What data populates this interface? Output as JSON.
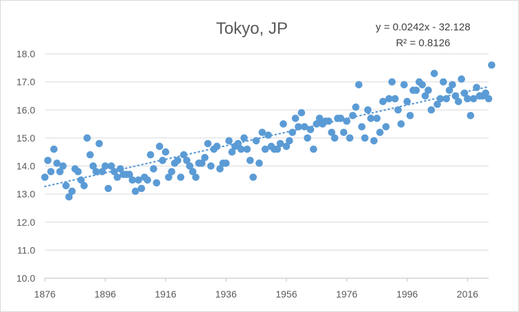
{
  "chart_data": {
    "type": "scatter",
    "title": "Tokyo, JP",
    "trendline": {
      "equation": "y = 0.0242x - 32.128",
      "r_squared": "R² = 0.8126",
      "slope": 0.0242,
      "intercept": -32.128,
      "style": "dotted"
    },
    "xlim": [
      1876,
      2023
    ],
    "ylim": [
      10.0,
      18.0
    ],
    "x_ticks": [
      1876,
      1896,
      1916,
      1936,
      1956,
      1976,
      1996,
      2016
    ],
    "y_ticks": [
      "10.0",
      "11.0",
      "12.0",
      "13.0",
      "14.0",
      "15.0",
      "16.0",
      "17.0",
      "18.0"
    ],
    "grid": "horizontal",
    "legend": "none",
    "colors": {
      "marker": "#5b9bd5",
      "trend": "#5b9bd5",
      "grid": "#d9d9d9",
      "text": "#595959"
    },
    "points": [
      [
        1876,
        13.6
      ],
      [
        1877,
        14.2
      ],
      [
        1878,
        13.8
      ],
      [
        1879,
        14.6
      ],
      [
        1880,
        14.1
      ],
      [
        1881,
        13.8
      ],
      [
        1882,
        14.0
      ],
      [
        1883,
        13.3
      ],
      [
        1884,
        12.9
      ],
      [
        1885,
        13.1
      ],
      [
        1886,
        13.9
      ],
      [
        1887,
        13.8
      ],
      [
        1888,
        13.5
      ],
      [
        1889,
        13.3
      ],
      [
        1890,
        15.0
      ],
      [
        1891,
        14.4
      ],
      [
        1892,
        14.0
      ],
      [
        1893,
        13.8
      ],
      [
        1894,
        14.8
      ],
      [
        1895,
        13.8
      ],
      [
        1896,
        14.0
      ],
      [
        1897,
        13.2
      ],
      [
        1898,
        14.0
      ],
      [
        1899,
        13.8
      ],
      [
        1900,
        13.6
      ],
      [
        1901,
        13.9
      ],
      [
        1902,
        13.7
      ],
      [
        1903,
        13.7
      ],
      [
        1904,
        13.7
      ],
      [
        1905,
        13.5
      ],
      [
        1906,
        13.1
      ],
      [
        1907,
        13.5
      ],
      [
        1908,
        13.2
      ],
      [
        1909,
        13.6
      ],
      [
        1910,
        13.5
      ],
      [
        1911,
        14.4
      ],
      [
        1912,
        13.9
      ],
      [
        1913,
        13.4
      ],
      [
        1914,
        14.7
      ],
      [
        1915,
        14.2
      ],
      [
        1916,
        14.5
      ],
      [
        1917,
        13.6
      ],
      [
        1918,
        13.8
      ],
      [
        1919,
        14.1
      ],
      [
        1920,
        14.2
      ],
      [
        1921,
        13.6
      ],
      [
        1922,
        14.4
      ],
      [
        1923,
        14.2
      ],
      [
        1924,
        14.0
      ],
      [
        1925,
        13.8
      ],
      [
        1926,
        13.6
      ],
      [
        1927,
        14.1
      ],
      [
        1928,
        14.1
      ],
      [
        1929,
        14.3
      ],
      [
        1930,
        14.8
      ],
      [
        1931,
        14.0
      ],
      [
        1932,
        14.6
      ],
      [
        1933,
        14.7
      ],
      [
        1934,
        13.9
      ],
      [
        1935,
        14.1
      ],
      [
        1936,
        14.1
      ],
      [
        1937,
        14.9
      ],
      [
        1938,
        14.5
      ],
      [
        1939,
        14.7
      ],
      [
        1940,
        14.8
      ],
      [
        1941,
        14.6
      ],
      [
        1942,
        15.0
      ],
      [
        1943,
        14.6
      ],
      [
        1944,
        14.2
      ],
      [
        1945,
        13.6
      ],
      [
        1946,
        14.9
      ],
      [
        1947,
        14.1
      ],
      [
        1948,
        15.2
      ],
      [
        1949,
        14.6
      ],
      [
        1950,
        15.1
      ],
      [
        1951,
        14.7
      ],
      [
        1952,
        14.6
      ],
      [
        1953,
        14.6
      ],
      [
        1954,
        14.8
      ],
      [
        1955,
        15.5
      ],
      [
        1956,
        14.7
      ],
      [
        1957,
        14.9
      ],
      [
        1958,
        15.2
      ],
      [
        1959,
        15.7
      ],
      [
        1960,
        15.4
      ],
      [
        1961,
        15.9
      ],
      [
        1962,
        15.4
      ],
      [
        1963,
        15.0
      ],
      [
        1964,
        15.3
      ],
      [
        1965,
        14.6
      ],
      [
        1966,
        15.5
      ],
      [
        1967,
        15.7
      ],
      [
        1968,
        15.5
      ],
      [
        1969,
        15.6
      ],
      [
        1970,
        15.6
      ],
      [
        1971,
        15.2
      ],
      [
        1972,
        15.0
      ],
      [
        1973,
        15.7
      ],
      [
        1974,
        15.7
      ],
      [
        1975,
        15.2
      ],
      [
        1976,
        15.6
      ],
      [
        1977,
        15.0
      ],
      [
        1978,
        15.8
      ],
      [
        1979,
        16.1
      ],
      [
        1980,
        16.9
      ],
      [
        1981,
        15.4
      ],
      [
        1982,
        15.0
      ],
      [
        1983,
        16.0
      ],
      [
        1984,
        15.7
      ],
      [
        1985,
        14.9
      ],
      [
        1986,
        15.7
      ],
      [
        1987,
        15.2
      ],
      [
        1988,
        16.3
      ],
      [
        1989,
        15.4
      ],
      [
        1990,
        16.4
      ],
      [
        1991,
        17.0
      ],
      [
        1992,
        16.4
      ],
      [
        1993,
        16.0
      ],
      [
        1994,
        15.5
      ],
      [
        1995,
        16.9
      ],
      [
        1996,
        16.3
      ],
      [
        1997,
        15.8
      ],
      [
        1998,
        16.7
      ],
      [
        1999,
        16.7
      ],
      [
        2000,
        17.0
      ],
      [
        2001,
        16.9
      ],
      [
        2002,
        16.5
      ],
      [
        2003,
        16.7
      ],
      [
        2004,
        16.0
      ],
      [
        2005,
        17.3
      ],
      [
        2006,
        16.2
      ],
      [
        2007,
        16.4
      ],
      [
        2008,
        17.0
      ],
      [
        2009,
        16.4
      ],
      [
        2010,
        16.7
      ],
      [
        2011,
        16.9
      ],
      [
        2012,
        16.5
      ],
      [
        2013,
        16.3
      ],
      [
        2014,
        17.1
      ],
      [
        2015,
        16.6
      ],
      [
        2016,
        16.4
      ],
      [
        2017,
        15.8
      ],
      [
        2018,
        16.4
      ],
      [
        2019,
        16.8
      ],
      [
        2020,
        16.5
      ],
      [
        2021,
        16.5
      ],
      [
        2022,
        16.6
      ],
      [
        2023,
        16.4
      ],
      [
        2024,
        17.6
      ]
    ]
  }
}
